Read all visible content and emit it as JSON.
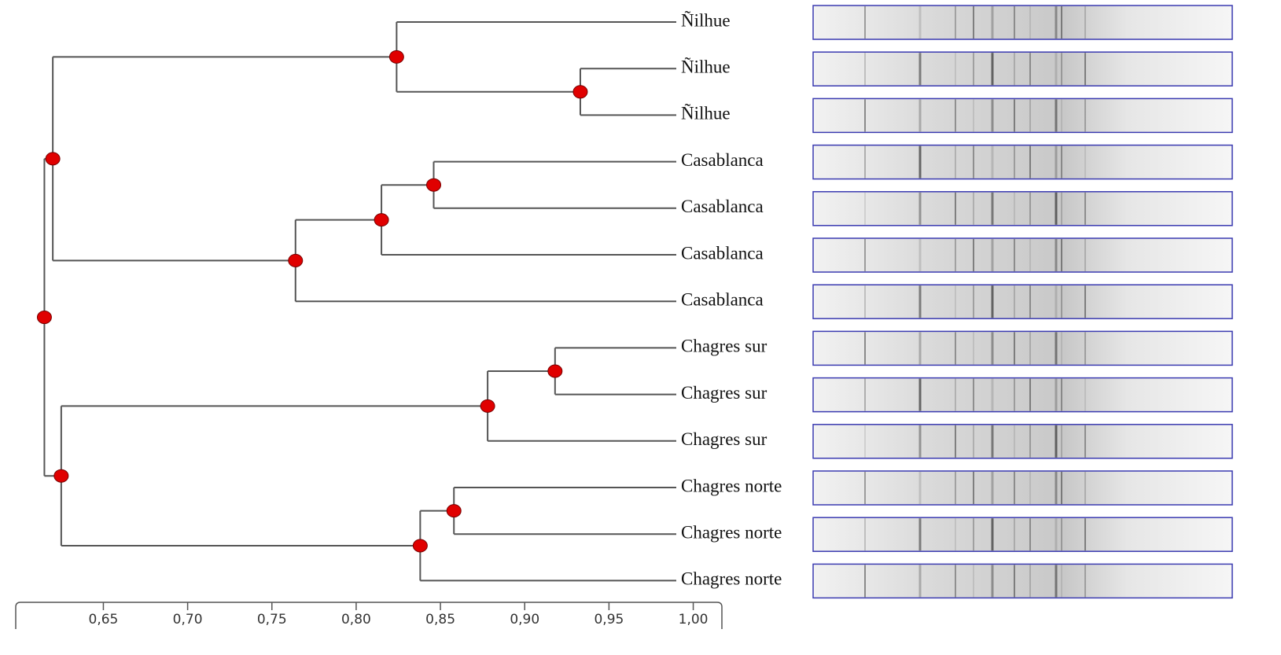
{
  "chart_data": {
    "type": "dendrogram",
    "xlim": [
      0.598,
      1.017
    ],
    "xticks": [
      {
        "value": 0.65,
        "label": "0,65"
      },
      {
        "value": 0.7,
        "label": "0,70"
      },
      {
        "value": 0.75,
        "label": "0,75"
      },
      {
        "value": 0.8,
        "label": "0,80"
      },
      {
        "value": 0.85,
        "label": "0,85"
      },
      {
        "value": 0.9,
        "label": "0,90"
      },
      {
        "value": 0.95,
        "label": "0,95"
      },
      {
        "value": 1.0,
        "label": "1,00"
      }
    ],
    "node_color": "#e00000",
    "tree": {
      "value": 0.615,
      "children": [
        {
          "value": 0.62,
          "children": [
            {
              "value": 0.824,
              "children": [
                {
                  "label": "Ñilhue"
                },
                {
                  "value": 0.933,
                  "children": [
                    {
                      "label": "Ñilhue"
                    },
                    {
                      "label": "Ñilhue"
                    }
                  ]
                }
              ]
            },
            {
              "value": 0.764,
              "children": [
                {
                  "value": 0.815,
                  "children": [
                    {
                      "value": 0.846,
                      "children": [
                        {
                          "label": "Casablanca"
                        },
                        {
                          "label": "Casablanca"
                        }
                      ]
                    },
                    {
                      "label": "Casablanca"
                    }
                  ]
                },
                {
                  "label": "Casablanca"
                }
              ]
            }
          ]
        },
        {
          "value": 0.625,
          "children": [
            {
              "value": 0.878,
              "children": [
                {
                  "value": 0.918,
                  "children": [
                    {
                      "label": "Chagres sur"
                    },
                    {
                      "label": "Chagres sur"
                    }
                  ]
                },
                {
                  "label": "Chagres sur"
                }
              ]
            },
            {
              "value": 0.838,
              "children": [
                {
                  "value": 0.858,
                  "children": [
                    {
                      "label": "Chagres norte"
                    },
                    {
                      "label": "Chagres norte"
                    }
                  ]
                },
                {
                  "label": "Chagres norte"
                }
              ]
            }
          ]
        }
      ]
    }
  }
}
